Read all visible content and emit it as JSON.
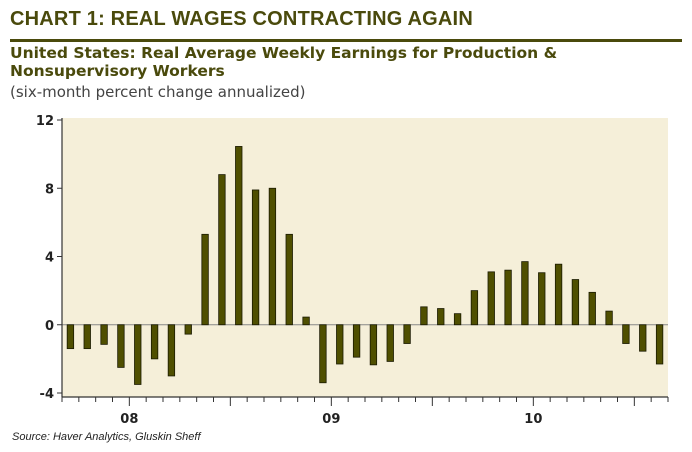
{
  "title": "CHART 1: REAL WAGES CONTRACTING AGAIN",
  "subtitle": "United States: Real Average Weekly Earnings for Production & Nonsupervisory Workers",
  "subtitle2": "(six-month percent change annualized)",
  "source": "Source: Haver Analytics, Gluskin Sheff",
  "colors": {
    "bar": "#4f4f00",
    "plot_bg": "#f5efd9",
    "title": "#4a4a0c"
  },
  "chart_data": {
    "type": "bar",
    "ylim": [
      -4,
      12
    ],
    "yticks": [
      -4,
      0,
      4,
      8,
      12
    ],
    "ytick_labels": [
      "-4",
      "0",
      "4",
      "8",
      "12"
    ],
    "xtick_labels": [
      {
        "label": "08",
        "after_bar": 4
      },
      {
        "label": "09",
        "after_bar": 16
      },
      {
        "label": "10",
        "after_bar": 28
      }
    ],
    "grid": false,
    "values": [
      -1.4,
      -1.4,
      -1.15,
      -2.5,
      -3.5,
      -2.0,
      -3.0,
      -0.55,
      5.3,
      8.8,
      10.45,
      7.9,
      8.0,
      5.3,
      0.45,
      -3.4,
      -2.3,
      -1.9,
      -2.35,
      -2.15,
      -1.1,
      1.05,
      0.95,
      0.65,
      2.0,
      3.1,
      3.2,
      3.7,
      3.05,
      3.55,
      2.65,
      1.9,
      0.8,
      -1.1,
      -1.55,
      -2.3
    ]
  }
}
